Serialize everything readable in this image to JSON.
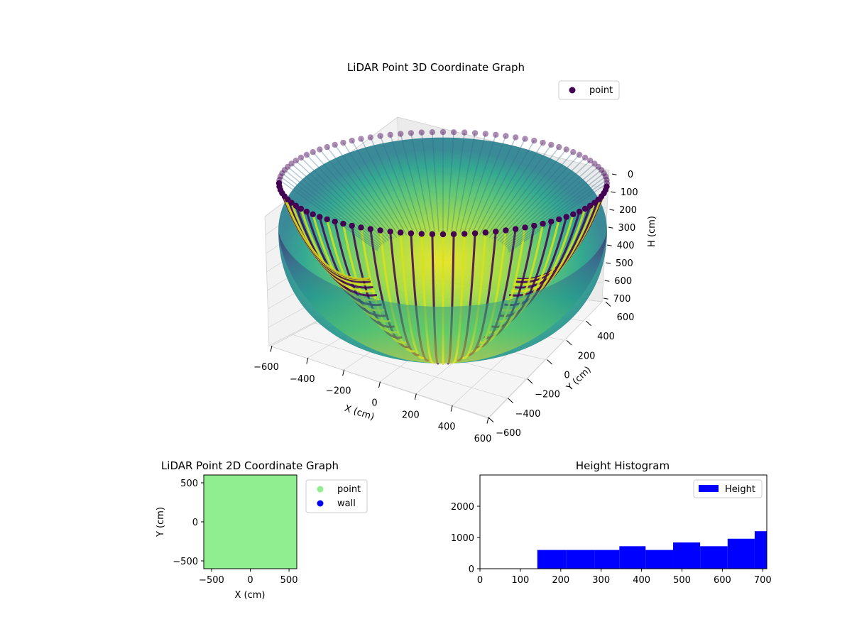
{
  "chart_data": [
    {
      "type": "scatter",
      "projection": "3d",
      "title": "LiDAR Point 3D Coordinate Graph",
      "xlabel": "X (cm)",
      "ylabel": "Y (cm)",
      "zlabel": "H (cm)",
      "xlim": [
        -600,
        600
      ],
      "ylim": [
        -600,
        600
      ],
      "zlim": [
        0,
        700
      ],
      "z_inverted": true,
      "xticks": [
        -600,
        -400,
        -200,
        0,
        200,
        400,
        600
      ],
      "yticks": [
        -600,
        -400,
        -200,
        0,
        200,
        400,
        600
      ],
      "zticks": [
        0,
        100,
        200,
        300,
        400,
        500,
        600,
        700
      ],
      "x_tick_labels": [
        "−600",
        "−400",
        "−200",
        "0",
        "200",
        "400",
        "600"
      ],
      "y_tick_labels": [
        "−600",
        "−400",
        "−200",
        "0",
        "200",
        "400",
        "600"
      ],
      "z_tick_labels": [
        "0",
        "100",
        "200",
        "300",
        "400",
        "500",
        "600",
        "700"
      ],
      "series": [
        {
          "name": "point",
          "shape": "hemisphere",
          "radius": 600,
          "depth": 700,
          "colormap": "viridis",
          "legend_color": "#440154"
        }
      ],
      "legend": {
        "placement": "upper-right"
      },
      "grid": true
    },
    {
      "type": "scatter",
      "title": "LiDAR Point 2D Coordinate Graph",
      "xlabel": "X (cm)",
      "ylabel": "Y (cm)",
      "xlim": [
        -600,
        600
      ],
      "ylim": [
        -600,
        600
      ],
      "xticks": [
        -500,
        0,
        500
      ],
      "yticks": [
        -500,
        0,
        500
      ],
      "x_tick_labels": [
        "−500",
        "0",
        "500"
      ],
      "y_tick_labels": [
        "−500",
        "0",
        "500"
      ],
      "series": [
        {
          "name": "point",
          "color": "#90ee90"
        },
        {
          "name": "wall",
          "color": "#0000ff"
        }
      ],
      "fill_color": "#90ee90",
      "legend": {
        "placement": "outside-right"
      },
      "grid": false
    },
    {
      "type": "bar",
      "subtype": "histogram",
      "title": "Height Histogram",
      "xlim": [
        0,
        710
      ],
      "ylim": [
        0,
        3000
      ],
      "xticks": [
        0,
        100,
        200,
        300,
        400,
        500,
        600,
        700
      ],
      "yticks": [
        0,
        1000,
        2000
      ],
      "x_tick_labels": [
        "0",
        "100",
        "200",
        "300",
        "400",
        "500",
        "600",
        "700"
      ],
      "y_tick_labels": [
        "0",
        "1000",
        "2000"
      ],
      "series": [
        {
          "name": "Height",
          "color": "#0000ff",
          "bins": [
            {
              "x0": 0,
              "x1": 71,
              "count": 0
            },
            {
              "x0": 71,
              "x1": 142,
              "count": 0
            },
            {
              "x0": 142,
              "x1": 213,
              "count": 600
            },
            {
              "x0": 213,
              "x1": 284,
              "count": 600
            },
            {
              "x0": 284,
              "x1": 345,
              "count": 600
            },
            {
              "x0": 345,
              "x1": 410,
              "count": 720
            },
            {
              "x0": 410,
              "x1": 478,
              "count": 600
            },
            {
              "x0": 478,
              "x1": 545,
              "count": 840
            },
            {
              "x0": 545,
              "x1": 613,
              "count": 720
            },
            {
              "x0": 613,
              "x1": 680,
              "count": 960
            },
            {
              "x0": 680,
              "x1": 710,
              "count": 1200
            }
          ]
        }
      ],
      "legend": {
        "placement": "upper-right"
      },
      "grid": false
    }
  ]
}
